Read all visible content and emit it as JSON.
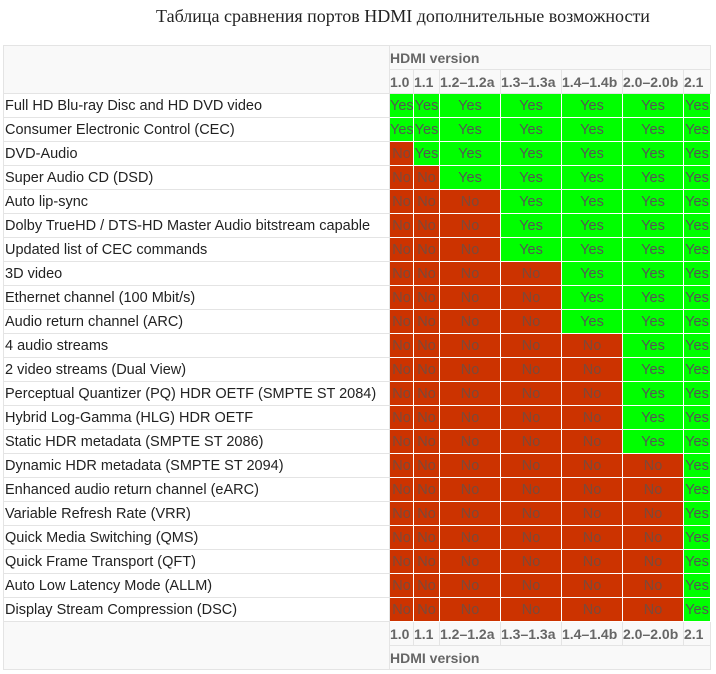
{
  "title": "Таблица сравнения портов HDMI дополнительные возможности",
  "header_label": "HDMI version",
  "versions": [
    "1.0",
    "1.1",
    "1.2–1.2a",
    "1.3–1.3a",
    "1.4–1.4b",
    "2.0–2.0b",
    "2.1"
  ],
  "colors": {
    "yes": "#00ff00",
    "no": "#cc3300"
  },
  "rows": [
    {
      "feature": "Full HD Blu-ray Disc and HD DVD video",
      "values": [
        "Yes",
        "Yes",
        "Yes",
        "Yes",
        "Yes",
        "Yes",
        "Yes"
      ]
    },
    {
      "feature": "Consumer Electronic Control (CEC)",
      "values": [
        "Yes",
        "Yes",
        "Yes",
        "Yes",
        "Yes",
        "Yes",
        "Yes"
      ]
    },
    {
      "feature": "DVD-Audio",
      "values": [
        "No",
        "Yes",
        "Yes",
        "Yes",
        "Yes",
        "Yes",
        "Yes"
      ]
    },
    {
      "feature": "Super Audio CD (DSD)",
      "values": [
        "No",
        "No",
        "Yes",
        "Yes",
        "Yes",
        "Yes",
        "Yes"
      ]
    },
    {
      "feature": "Auto lip-sync",
      "values": [
        "No",
        "No",
        "No",
        "Yes",
        "Yes",
        "Yes",
        "Yes"
      ]
    },
    {
      "feature": "Dolby TrueHD / DTS-HD Master Audio bitstream capable",
      "values": [
        "No",
        "No",
        "No",
        "Yes",
        "Yes",
        "Yes",
        "Yes"
      ]
    },
    {
      "feature": "Updated list of CEC commands",
      "values": [
        "No",
        "No",
        "No",
        "Yes",
        "Yes",
        "Yes",
        "Yes"
      ]
    },
    {
      "feature": "3D video",
      "values": [
        "No",
        "No",
        "No",
        "No",
        "Yes",
        "Yes",
        "Yes"
      ]
    },
    {
      "feature": "Ethernet channel (100 Mbit/s)",
      "values": [
        "No",
        "No",
        "No",
        "No",
        "Yes",
        "Yes",
        "Yes"
      ]
    },
    {
      "feature": "Audio return channel (ARC)",
      "values": [
        "No",
        "No",
        "No",
        "No",
        "Yes",
        "Yes",
        "Yes"
      ]
    },
    {
      "feature": "4 audio streams",
      "values": [
        "No",
        "No",
        "No",
        "No",
        "No",
        "Yes",
        "Yes"
      ]
    },
    {
      "feature": "2 video streams (Dual View)",
      "values": [
        "No",
        "No",
        "No",
        "No",
        "No",
        "Yes",
        "Yes"
      ]
    },
    {
      "feature": "Perceptual Quantizer (PQ) HDR OETF (SMPTE ST 2084)",
      "values": [
        "No",
        "No",
        "No",
        "No",
        "No",
        "Yes",
        "Yes"
      ]
    },
    {
      "feature": "Hybrid Log-Gamma (HLG) HDR OETF",
      "values": [
        "No",
        "No",
        "No",
        "No",
        "No",
        "Yes",
        "Yes"
      ]
    },
    {
      "feature": "Static HDR metadata (SMPTE ST 2086)",
      "values": [
        "No",
        "No",
        "No",
        "No",
        "No",
        "Yes",
        "Yes"
      ]
    },
    {
      "feature": "Dynamic HDR metadata (SMPTE ST 2094)",
      "values": [
        "No",
        "No",
        "No",
        "No",
        "No",
        "No",
        "Yes"
      ]
    },
    {
      "feature": "Enhanced audio return channel (eARC)",
      "values": [
        "No",
        "No",
        "No",
        "No",
        "No",
        "No",
        "Yes"
      ]
    },
    {
      "feature": "Variable Refresh Rate (VRR)",
      "values": [
        "No",
        "No",
        "No",
        "No",
        "No",
        "No",
        "Yes"
      ]
    },
    {
      "feature": "Quick Media Switching (QMS)",
      "values": [
        "No",
        "No",
        "No",
        "No",
        "No",
        "No",
        "Yes"
      ]
    },
    {
      "feature": "Quick Frame Transport (QFT)",
      "values": [
        "No",
        "No",
        "No",
        "No",
        "No",
        "No",
        "Yes"
      ]
    },
    {
      "feature": "Auto Low Latency Mode (ALLM)",
      "values": [
        "No",
        "No",
        "No",
        "No",
        "No",
        "No",
        "Yes"
      ]
    },
    {
      "feature": "Display Stream Compression (DSC)",
      "values": [
        "No",
        "No",
        "No",
        "No",
        "No",
        "No",
        "Yes"
      ]
    }
  ]
}
